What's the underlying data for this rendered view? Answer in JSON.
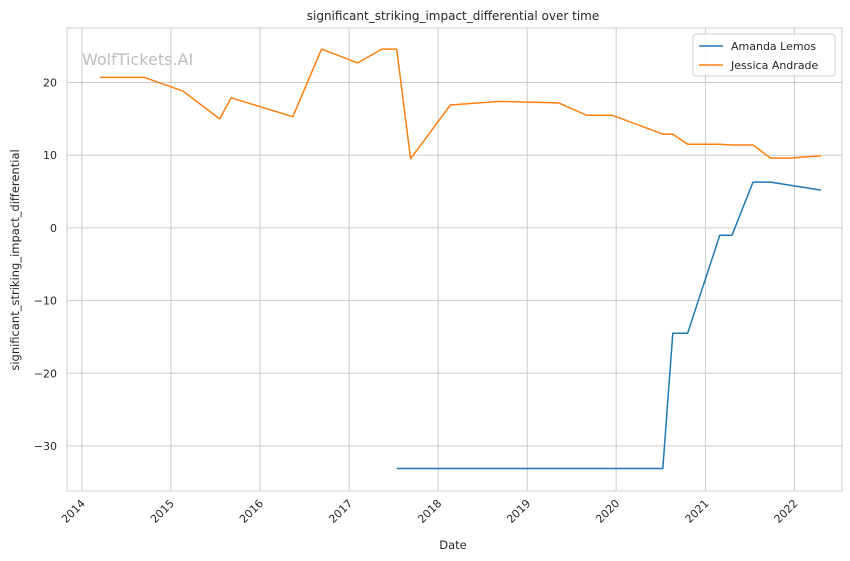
{
  "chart_data": {
    "type": "line",
    "title": "significant_striking_impact_differential over time",
    "xlabel": "Date",
    "ylabel": "significant_striking_impact_differential",
    "watermark": "WolfTickets.AI",
    "x_ticks": [
      "2014",
      "2015",
      "2016",
      "2017",
      "2018",
      "2019",
      "2020",
      "2021",
      "2022"
    ],
    "y_ticks": [
      20,
      10,
      0,
      -10,
      -20,
      -30
    ],
    "xlim": [
      "2013-11-01",
      "2022-07-15"
    ],
    "ylim": [
      -36.2,
      27.5
    ],
    "grid": true,
    "legend": "top-right",
    "series": [
      {
        "name": "Amanda Lemos",
        "color": "#1f77b4",
        "points": [
          [
            "2017-07-15",
            -33.1
          ],
          [
            "2020-07-10",
            -33.1
          ],
          [
            "2020-08-20",
            -14.5
          ],
          [
            "2020-10-20",
            -14.5
          ],
          [
            "2021-03-01",
            -1.0
          ],
          [
            "2021-04-20",
            -1.0
          ],
          [
            "2021-07-15",
            6.3
          ],
          [
            "2021-09-25",
            6.3
          ],
          [
            "2022-04-20",
            5.2
          ]
        ]
      },
      {
        "name": "Jessica Andrade",
        "color": "#ff7f0e",
        "points": [
          [
            "2014-03-15",
            20.7
          ],
          [
            "2014-09-15",
            20.7
          ],
          [
            "2015-02-20",
            18.8
          ],
          [
            "2015-07-20",
            15.0
          ],
          [
            "2015-09-05",
            17.9
          ],
          [
            "2016-05-15",
            15.3
          ],
          [
            "2016-09-10",
            24.6
          ],
          [
            "2017-02-05",
            22.7
          ],
          [
            "2017-05-15",
            24.6
          ],
          [
            "2017-07-15",
            24.6
          ],
          [
            "2017-09-10",
            9.5
          ],
          [
            "2018-02-20",
            16.9
          ],
          [
            "2018-09-10",
            17.4
          ],
          [
            "2019-05-10",
            17.2
          ],
          [
            "2019-09-01",
            15.5
          ],
          [
            "2019-12-15",
            15.5
          ],
          [
            "2020-07-10",
            12.9
          ],
          [
            "2020-08-20",
            12.9
          ],
          [
            "2020-10-20",
            11.5
          ],
          [
            "2021-03-01",
            11.5
          ],
          [
            "2021-04-20",
            11.4
          ],
          [
            "2021-07-15",
            11.4
          ],
          [
            "2021-09-25",
            9.6
          ],
          [
            "2021-12-10",
            9.6
          ],
          [
            "2022-04-20",
            9.9
          ]
        ]
      }
    ]
  }
}
